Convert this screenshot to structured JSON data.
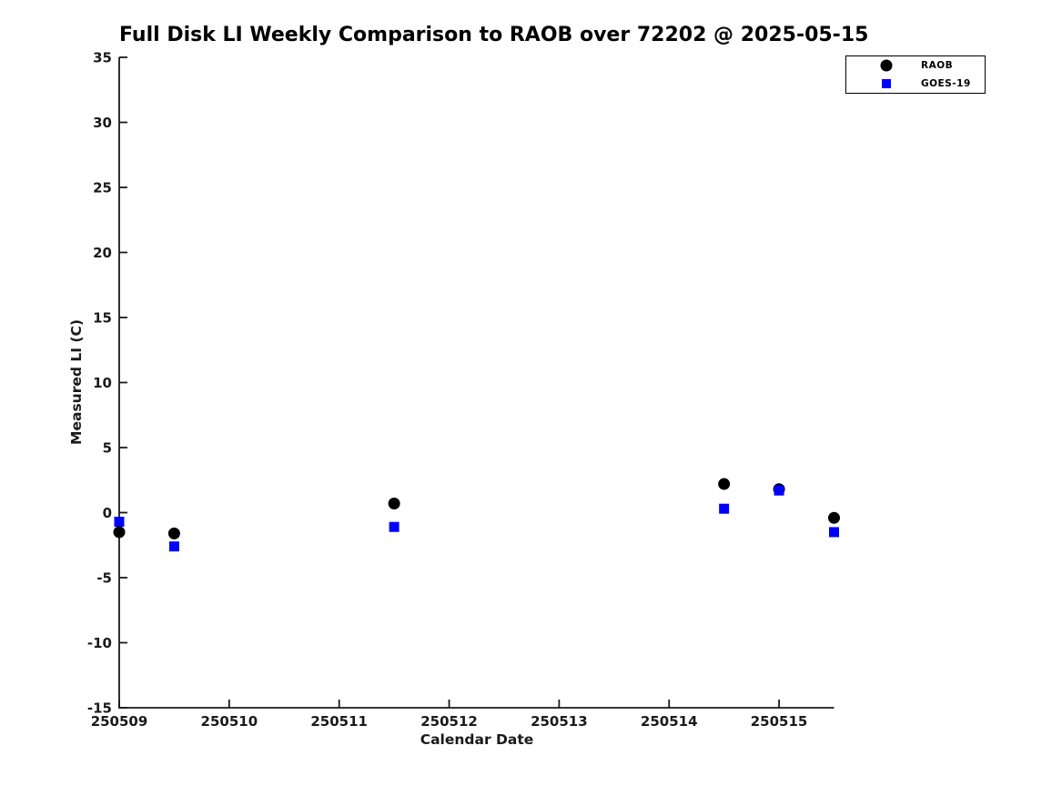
{
  "figure": {
    "background": "#ffffff"
  },
  "chart_data": {
    "type": "scatter",
    "title": "Full Disk LI Weekly Comparison to RAOB over 72202 @ 2025-05-15",
    "xlabel": "Calendar Date",
    "ylabel": "Measured LI (C)",
    "xlim": [
      250509,
      250515.5
    ],
    "ylim": [
      -15,
      35
    ],
    "xticks": [
      250509,
      250510,
      250511,
      250512,
      250513,
      250514,
      250515
    ],
    "yticks": [
      35,
      30,
      25,
      20,
      15,
      10,
      5,
      0,
      -5,
      -10,
      -15
    ],
    "grid": false,
    "tick_direction": "in",
    "axis_color": "#1a1a1a",
    "legend": {
      "position": "top-right",
      "border_color": "#000000",
      "background": "#ffffff"
    },
    "series": [
      {
        "name": "RAOB",
        "marker": "circle",
        "color": "#000000",
        "x": [
          250509.0,
          250509.5,
          250511.5,
          250514.5,
          250515.0,
          250515.5
        ],
        "y": [
          -1.5,
          -1.6,
          0.7,
          2.2,
          1.8,
          -0.4
        ]
      },
      {
        "name": "GOES-19",
        "marker": "square",
        "color": "#0000ff",
        "x": [
          250509.0,
          250509.5,
          250511.5,
          250514.5,
          250515.0,
          250515.5
        ],
        "y": [
          -0.7,
          -2.6,
          -1.1,
          0.3,
          1.7,
          -1.5
        ]
      }
    ]
  }
}
